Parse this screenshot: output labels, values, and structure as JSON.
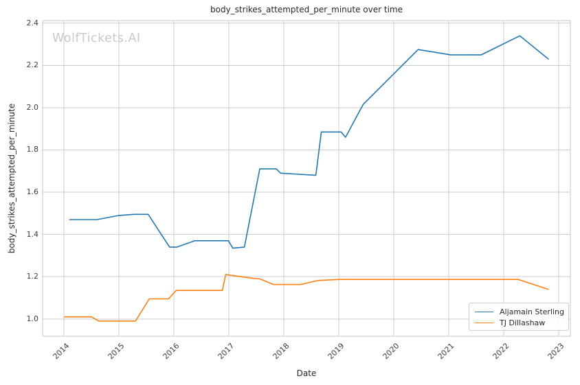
{
  "watermark": "WolfTickets.AI",
  "chart_data": {
    "type": "line",
    "title": "body_strikes_attempted_per_minute over time",
    "xlabel": "Date",
    "ylabel": "body_strikes_attempted_per_minute",
    "xlim": [
      2013.61,
      2023.21
    ],
    "ylim": [
      0.918,
      2.412
    ],
    "x_ticks": [
      2014,
      2015,
      2016,
      2017,
      2018,
      2019,
      2020,
      2021,
      2022,
      2023
    ],
    "y_ticks": [
      1.0,
      1.2,
      1.4,
      1.6,
      1.8,
      2.0,
      2.2,
      2.4
    ],
    "grid": true,
    "legend_position": "lower right",
    "series": [
      {
        "name": "Aljamain Sterling",
        "color": "#1f77b4",
        "points": [
          [
            2014.1,
            1.47
          ],
          [
            2014.6,
            1.47
          ],
          [
            2015.0,
            1.49
          ],
          [
            2015.28,
            1.495
          ],
          [
            2015.53,
            1.495
          ],
          [
            2015.92,
            1.34
          ],
          [
            2016.05,
            1.34
          ],
          [
            2016.38,
            1.37
          ],
          [
            2016.99,
            1.37
          ],
          [
            2017.07,
            1.335
          ],
          [
            2017.28,
            1.34
          ],
          [
            2017.56,
            1.71
          ],
          [
            2017.86,
            1.71
          ],
          [
            2017.94,
            1.69
          ],
          [
            2018.58,
            1.68
          ],
          [
            2018.68,
            1.885
          ],
          [
            2019.04,
            1.885
          ],
          [
            2019.12,
            1.86
          ],
          [
            2019.44,
            2.015
          ],
          [
            2020.44,
            2.275
          ],
          [
            2021.03,
            2.25
          ],
          [
            2021.59,
            2.25
          ],
          [
            2022.29,
            2.34
          ],
          [
            2022.81,
            2.23
          ]
        ]
      },
      {
        "name": "TJ Dillashaw",
        "color": "#ff7f0e",
        "points": [
          [
            2014.01,
            1.01
          ],
          [
            2014.5,
            1.01
          ],
          [
            2014.63,
            0.99
          ],
          [
            2015.3,
            0.99
          ],
          [
            2015.55,
            1.095
          ],
          [
            2015.9,
            1.095
          ],
          [
            2016.04,
            1.135
          ],
          [
            2016.88,
            1.135
          ],
          [
            2016.94,
            1.21
          ],
          [
            2017.44,
            1.192
          ],
          [
            2017.56,
            1.19
          ],
          [
            2017.81,
            1.163
          ],
          [
            2018.3,
            1.163
          ],
          [
            2018.62,
            1.182
          ],
          [
            2019.01,
            1.187
          ],
          [
            2022.26,
            1.187
          ],
          [
            2022.81,
            1.14
          ]
        ]
      }
    ]
  }
}
